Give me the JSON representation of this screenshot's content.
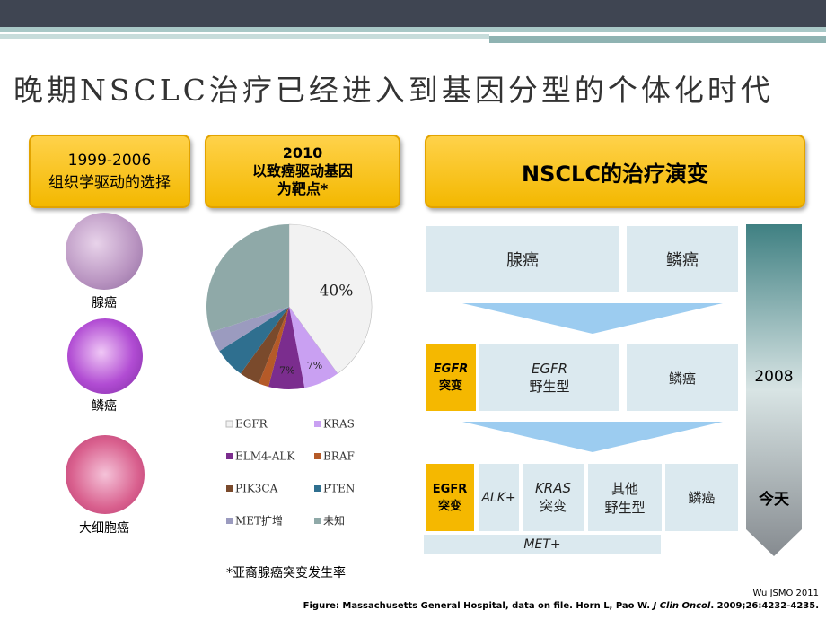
{
  "header": {
    "title": "晚期NSCLC治疗已经进入到基因分型的个体化时代"
  },
  "left": {
    "heading": [
      "1999-2006",
      "组织学驱动的选择"
    ],
    "histology": [
      "腺癌",
      "鳞癌",
      "大细胞癌"
    ]
  },
  "middle": {
    "heading": [
      "2010",
      "以致癌驱动基因",
      "为靶点*"
    ],
    "footnote": "*亚裔腺癌突变发生率"
  },
  "chart_data": {
    "type": "pie",
    "categories": [
      "EGFR",
      "KRAS",
      "ELM4-ALK",
      "BRAF",
      "PIK3CA",
      "PTEN",
      "MET扩增",
      "未知"
    ],
    "values": [
      40,
      7,
      7,
      2,
      4,
      6,
      4,
      30
    ],
    "value_labels": [
      "40%",
      "7%",
      "7%",
      null,
      null,
      null,
      null,
      null
    ],
    "colors": [
      "#f2f2f2",
      "#c9a0f2",
      "#7b2d8e",
      "#b55a28",
      "#7a4a2c",
      "#2f6f8f",
      "#9b9bbf",
      "#8fa9a8"
    ]
  },
  "right": {
    "heading": "NSCLC的治疗演变",
    "row1": [
      "腺癌",
      "鳞癌"
    ],
    "row2": {
      "mutation": [
        "EGFR",
        "突变"
      ],
      "wildtype": [
        "EGFR",
        "野生型"
      ],
      "squamous": "鳞癌"
    },
    "row3": {
      "mutation": [
        "EGFR",
        "突变"
      ],
      "alk": "ALK+",
      "kras": [
        "KRAS",
        "突变"
      ],
      "other": [
        "其他",
        "野生型"
      ],
      "squamous": "鳞癌",
      "met": "MET+"
    },
    "arrow": {
      "start": "2008",
      "end": "今天"
    }
  },
  "citation": {
    "source": "Wu JSMO 2011",
    "figure": [
      "Figure: Massachusetts General Hospital, data on file. Horn L, Pao W. ",
      "J Clin Oncol",
      ".",
      " 2009;26:4232-4235."
    ]
  }
}
